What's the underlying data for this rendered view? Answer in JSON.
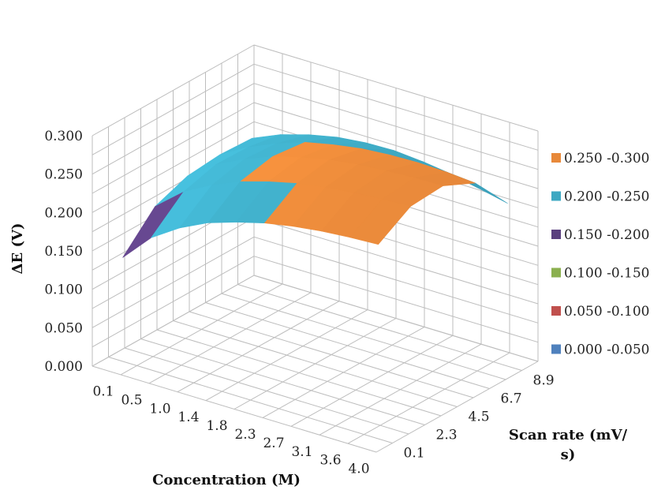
{
  "chart_data": {
    "type": "surface",
    "x_axis": {
      "label": "Concentration (M)",
      "ticks": [
        "0.1",
        "0.5",
        "1.0",
        "1.4",
        "1.8",
        "2.3",
        "2.7",
        "3.1",
        "3.6",
        "4.0"
      ]
    },
    "y_axis": {
      "label_line1": "Scan rate (mV/",
      "label_line2": "s)",
      "ticks": [
        "0.1",
        "2.3",
        "4.5",
        "6.7",
        "8.9"
      ]
    },
    "z_axis": {
      "label": "ΔE (V)",
      "ticks": [
        "0.000",
        "0.050",
        "0.100",
        "0.150",
        "0.200",
        "0.250",
        "0.300"
      ],
      "range": [
        0,
        0.3
      ]
    },
    "legend": [
      {
        "label": "0.250 -0.300",
        "color": "#e8893a"
      },
      {
        "label": "0.200 -0.250",
        "color": "#3ea8c2"
      },
      {
        "label": "0.150 -0.200",
        "color": "#5a3f7e"
      },
      {
        "label": "0.100 -0.150",
        "color": "#8bb04f"
      },
      {
        "label": "0.050 -0.100",
        "color": "#c0504d"
      },
      {
        "label": "0.000 -0.050",
        "color": "#4f81bd"
      }
    ],
    "surface_dE": [
      [
        0.135,
        0.172,
        0.196,
        0.214,
        0.226,
        0.236,
        0.243,
        0.248,
        0.251,
        0.253
      ],
      [
        0.178,
        0.208,
        0.228,
        0.244,
        0.255,
        0.264,
        0.27,
        0.274,
        0.277,
        0.279
      ],
      [
        0.194,
        0.22,
        0.238,
        0.253,
        0.263,
        0.271,
        0.276,
        0.279,
        0.281,
        0.282
      ],
      [
        0.198,
        0.219,
        0.235,
        0.248,
        0.256,
        0.262,
        0.265,
        0.266,
        0.265,
        0.262
      ],
      [
        0.196,
        0.212,
        0.223,
        0.231,
        0.235,
        0.236,
        0.233,
        0.228,
        0.22,
        0.212
      ]
    ],
    "grid": true,
    "legend_position": "right"
  }
}
